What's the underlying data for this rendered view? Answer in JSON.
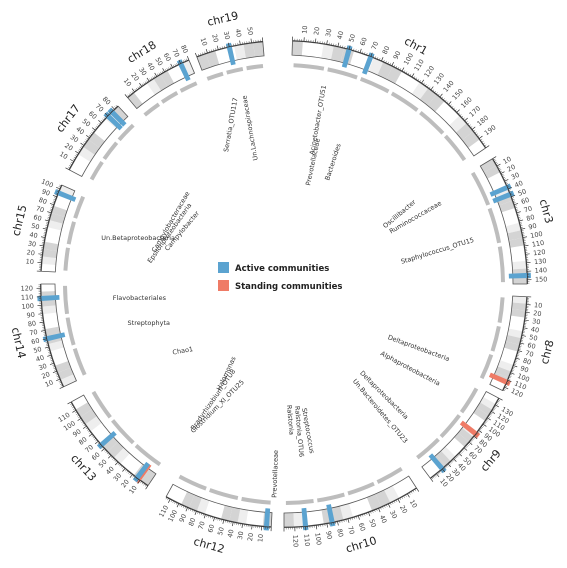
{
  "legend": {
    "active": {
      "label": "Active communities",
      "color": "#5ba3d0"
    },
    "standing": {
      "label": "Standing communities",
      "color": "#ef7b66"
    }
  },
  "colors": {
    "band_dark": "#d4d4d4",
    "band_light": "#eeeeee",
    "inner_track": "#bdbdbd",
    "outline": "#555555"
  },
  "chromosomes": [
    {
      "name": "chr1",
      "length": 200,
      "tick_max": 190,
      "highlights": [
        {
          "pos": 50,
          "type": "active"
        },
        {
          "pos": 70,
          "type": "active"
        }
      ]
    },
    {
      "name": "chr3",
      "length": 155,
      "tick_max": 150,
      "highlights": [
        {
          "pos": 38,
          "type": "active"
        },
        {
          "pos": 47,
          "type": "active"
        },
        {
          "pos": 145,
          "type": "active"
        }
      ]
    },
    {
      "name": "chr8",
      "length": 125,
      "tick_max": 120,
      "highlights": [
        {
          "pos": 113,
          "type": "standing"
        }
      ]
    },
    {
      "name": "chr9",
      "length": 140,
      "tick_max": 130,
      "highlights": [
        {
          "pos": 20,
          "type": "active"
        },
        {
          "pos": 84,
          "type": "standing"
        }
      ]
    },
    {
      "name": "chr10",
      "length": 130,
      "tick_max": 120,
      "highlights": [
        {
          "pos": 85,
          "type": "active"
        },
        {
          "pos": 110,
          "type": "active"
        }
      ]
    },
    {
      "name": "chr12",
      "length": 115,
      "tick_max": 110,
      "highlights": [
        {
          "pos": 5,
          "type": "active"
        }
      ]
    },
    {
      "name": "chr13",
      "length": 120,
      "tick_max": 110,
      "highlights": [
        {
          "pos": 12,
          "type": "standing"
        },
        {
          "pos": 14,
          "type": "active"
        },
        {
          "pos": 65,
          "type": "active"
        }
      ]
    },
    {
      "name": "chr14",
      "length": 125,
      "tick_max": 120,
      "highlights": [
        {
          "pos": 60,
          "type": "active"
        },
        {
          "pos": 108,
          "type": "active"
        }
      ]
    },
    {
      "name": "chr15",
      "length": 105,
      "tick_max": 100,
      "highlights": [
        {
          "pos": 95,
          "type": "active"
        }
      ]
    },
    {
      "name": "chr17",
      "length": 85,
      "tick_max": 80,
      "highlights": [
        {
          "pos": 70,
          "type": "active"
        },
        {
          "pos": 76,
          "type": "active"
        }
      ]
    },
    {
      "name": "chr18",
      "length": 80,
      "tick_max": 80,
      "highlights": [
        {
          "pos": 70,
          "type": "active"
        }
      ]
    },
    {
      "name": "chr19",
      "length": 60,
      "tick_max": 50,
      "highlights": [
        {
          "pos": 30,
          "type": "active"
        }
      ]
    }
  ],
  "taxa": [
    {
      "text": "Un.Lachnospiraceae"
    },
    {
      "text": "Acinetobacter_OTU51"
    },
    {
      "text": "Prevotellaceae"
    },
    {
      "text": "Bacteroides"
    },
    {
      "text": "Serratia_OTU117"
    },
    {
      "text": "Campylobacteraceae"
    },
    {
      "text": "Epsilonproteobacteria"
    },
    {
      "text": "Campylobacter"
    },
    {
      "text": "Oscillibacter"
    },
    {
      "text": "Ruminococcaceae"
    },
    {
      "text": "Un.Betaproteobacteria"
    },
    {
      "text": "Staphylococcus_OTU15"
    },
    {
      "text": "Flavobacteriales"
    },
    {
      "text": "Deltaproteobacteria"
    },
    {
      "text": "Streptophyta"
    },
    {
      "text": "Alphaproteobacteria"
    },
    {
      "text": "Chao1"
    },
    {
      "text": "Deltaproteobacteria"
    },
    {
      "text": "Un.Bacteroidetes_OTU23"
    },
    {
      "text": "Halomonas"
    },
    {
      "text": "Bradyrhizobium_OTU8"
    },
    {
      "text": "Clostridium_XI_OTU25"
    },
    {
      "text": "Prevotellaceae"
    },
    {
      "text": "Streptococcus"
    },
    {
      "text": "Ralstonia"
    },
    {
      "text": "Ralstonia_OTU6"
    }
  ]
}
